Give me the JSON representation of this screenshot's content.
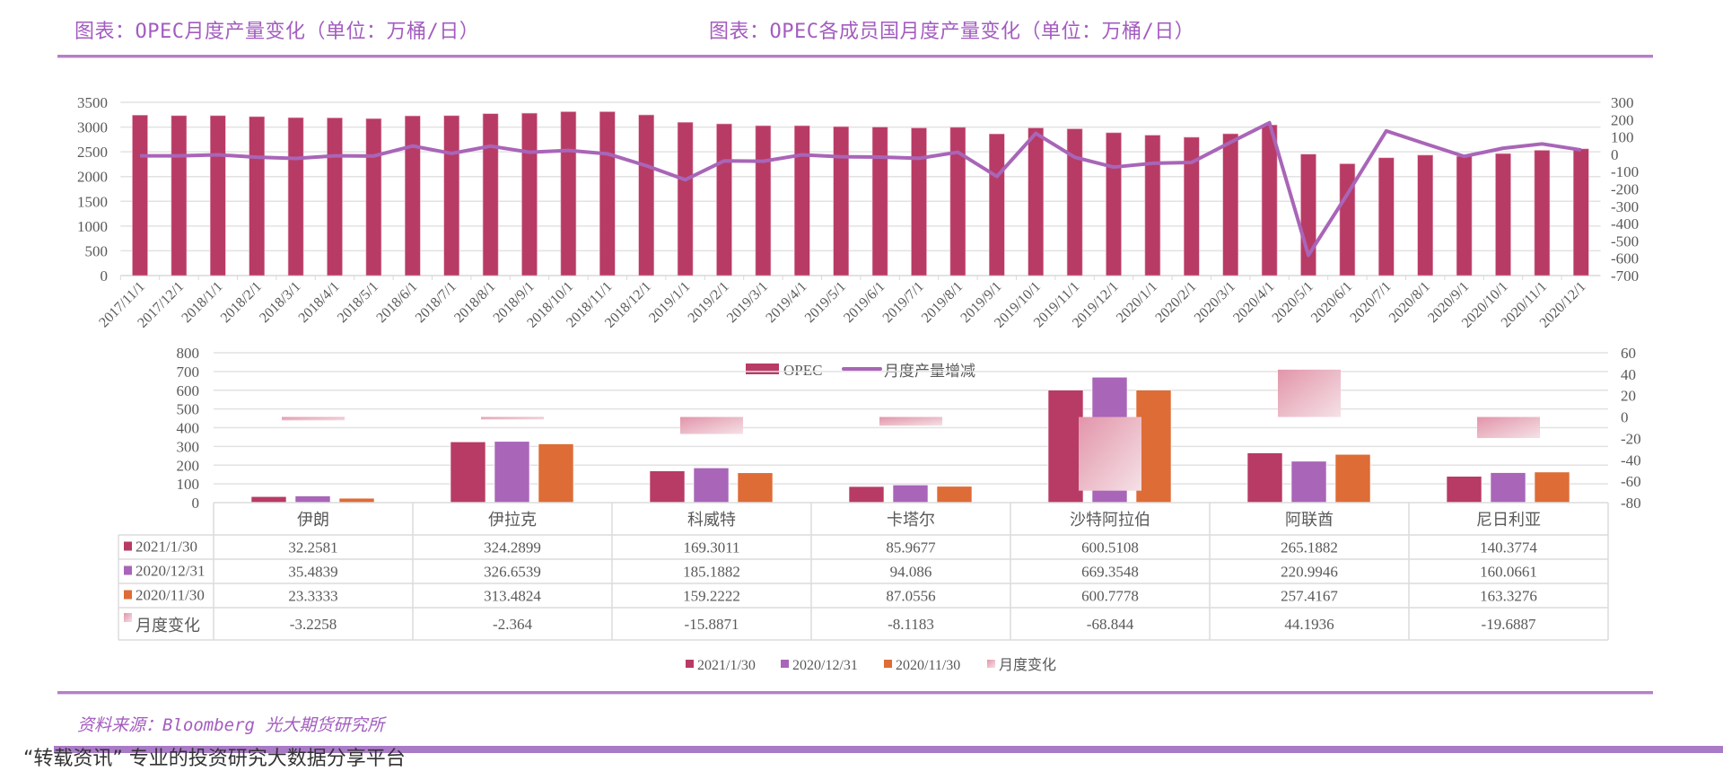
{
  "header": {
    "title_left": "图表：OPEC月度产量变化（单位：万桶/日）",
    "title_right": "图表：OPEC各成员国月度产量变化（单位：万桶/日）"
  },
  "footer": {
    "source": "资料来源：Bloomberg 光大期货研究所",
    "banner": "“转载资讯” 专业的投资研究大数据分享平台"
  },
  "colors": {
    "title": "#a35cbf",
    "opec_bar": "#b83b65",
    "change_line": "#a965b8",
    "series_2021_1_30": "#b83b65",
    "series_2020_12_31": "#a965b8",
    "series_2020_11_30": "#de6c36",
    "monthly_change_start": "#e295aa",
    "monthly_change_end": "#f5e1e6"
  },
  "chart_data": [
    {
      "type": "bar+line",
      "categories": [
        "2017/11/1",
        "2017/12/1",
        "2018/1/1",
        "2018/2/1",
        "2018/3/1",
        "2018/4/1",
        "2018/5/1",
        "2018/6/1",
        "2018/7/1",
        "2018/8/1",
        "2018/9/1",
        "2018/10/1",
        "2018/11/1",
        "2018/12/1",
        "2019/1/1",
        "2019/2/1",
        "2019/3/1",
        "2019/4/1",
        "2019/5/1",
        "2019/6/1",
        "2019/7/1",
        "2019/8/1",
        "2019/9/1",
        "2019/10/1",
        "2019/11/1",
        "2019/12/1",
        "2020/1/1",
        "2020/2/1",
        "2020/3/1",
        "2020/4/1",
        "2020/5/1",
        "2020/6/1",
        "2020/7/1",
        "2020/8/1",
        "2020/9/1",
        "2020/10/1",
        "2020/11/1",
        "2020/12/1"
      ],
      "series": [
        {
          "name": "OPEC",
          "axis": "left",
          "type": "bar",
          "values": [
            3240,
            3230,
            3230,
            3210,
            3190,
            3185,
            3170,
            3225,
            3230,
            3270,
            3280,
            3310,
            3310,
            3245,
            3095,
            3064,
            3027,
            3027,
            3009,
            3000,
            2982,
            2994,
            2861,
            2982,
            2964,
            2885,
            2836,
            2794,
            2864,
            3042,
            2452,
            2258,
            2379,
            2433,
            2409,
            2464,
            2530,
            2560
          ]
        },
        {
          "name": "月度产量增减",
          "axis": "right",
          "type": "line",
          "values": [
            -9,
            -9,
            -3,
            -17,
            -24,
            -9,
            -10,
            48,
            5,
            47,
            12,
            22,
            3,
            -66,
            -147,
            -38,
            -40,
            -3,
            -14,
            -16,
            -23,
            12,
            -128,
            121,
            -17,
            -74,
            -52,
            -47,
            69,
            182,
            -583,
            -230,
            135,
            61,
            -12,
            35,
            60,
            25
          ]
        }
      ],
      "left_axis": {
        "range": [
          0,
          3500
        ],
        "ticks": [
          "0",
          "500",
          "1000",
          "1500",
          "2000",
          "2500",
          "3000",
          "3500"
        ]
      },
      "right_axis": {
        "range": [
          -700,
          300
        ],
        "ticks": [
          "300",
          "200",
          "100",
          "0",
          "-100",
          "-200",
          "-300",
          "-400",
          "-500",
          "-600",
          "-700"
        ]
      },
      "grid": true,
      "legend": {
        "placement": "bottom",
        "items": [
          "OPEC",
          "月度产量增减"
        ]
      }
    },
    {
      "type": "bar+table",
      "categories": [
        "伊朗",
        "伊拉克",
        "科威特",
        "卡塔尔",
        "沙特阿拉伯",
        "阿联酋",
        "尼日利亚"
      ],
      "series": [
        {
          "name": "2021/1/30",
          "axis": "left",
          "values": [
            "32.2581",
            "324.2899",
            "169.3011",
            "85.9677",
            "600.5108",
            "265.1882",
            "140.3774"
          ]
        },
        {
          "name": "2020/12/31",
          "axis": "left",
          "values": [
            "35.4839",
            "326.6539",
            "185.1882",
            "94.086",
            "669.3548",
            "220.9946",
            "160.0661"
          ]
        },
        {
          "name": "2020/11/30",
          "axis": "left",
          "values": [
            "23.3333",
            "313.4824",
            "159.2222",
            "87.0556",
            "600.7778",
            "257.4167",
            "163.3276"
          ]
        },
        {
          "name": "月度变化",
          "axis": "right",
          "values": [
            "-3.2258",
            "-2.364",
            "-15.8871",
            "-8.1183",
            "-68.844",
            "44.1936",
            "-19.6887"
          ]
        }
      ],
      "left_axis": {
        "range": [
          0,
          800
        ],
        "ticks": [
          "0",
          "100",
          "200",
          "300",
          "400",
          "500",
          "600",
          "700",
          "800"
        ]
      },
      "right_axis": {
        "range": [
          -80,
          60
        ],
        "ticks": [
          "60",
          "40",
          "20",
          "0",
          "-20",
          "-40",
          "-60",
          "-80"
        ]
      },
      "grid": true,
      "legend": {
        "placement": "bottom",
        "items": [
          "2021/1/30",
          "2020/12/31",
          "2020/11/30",
          "月度变化"
        ]
      }
    }
  ]
}
